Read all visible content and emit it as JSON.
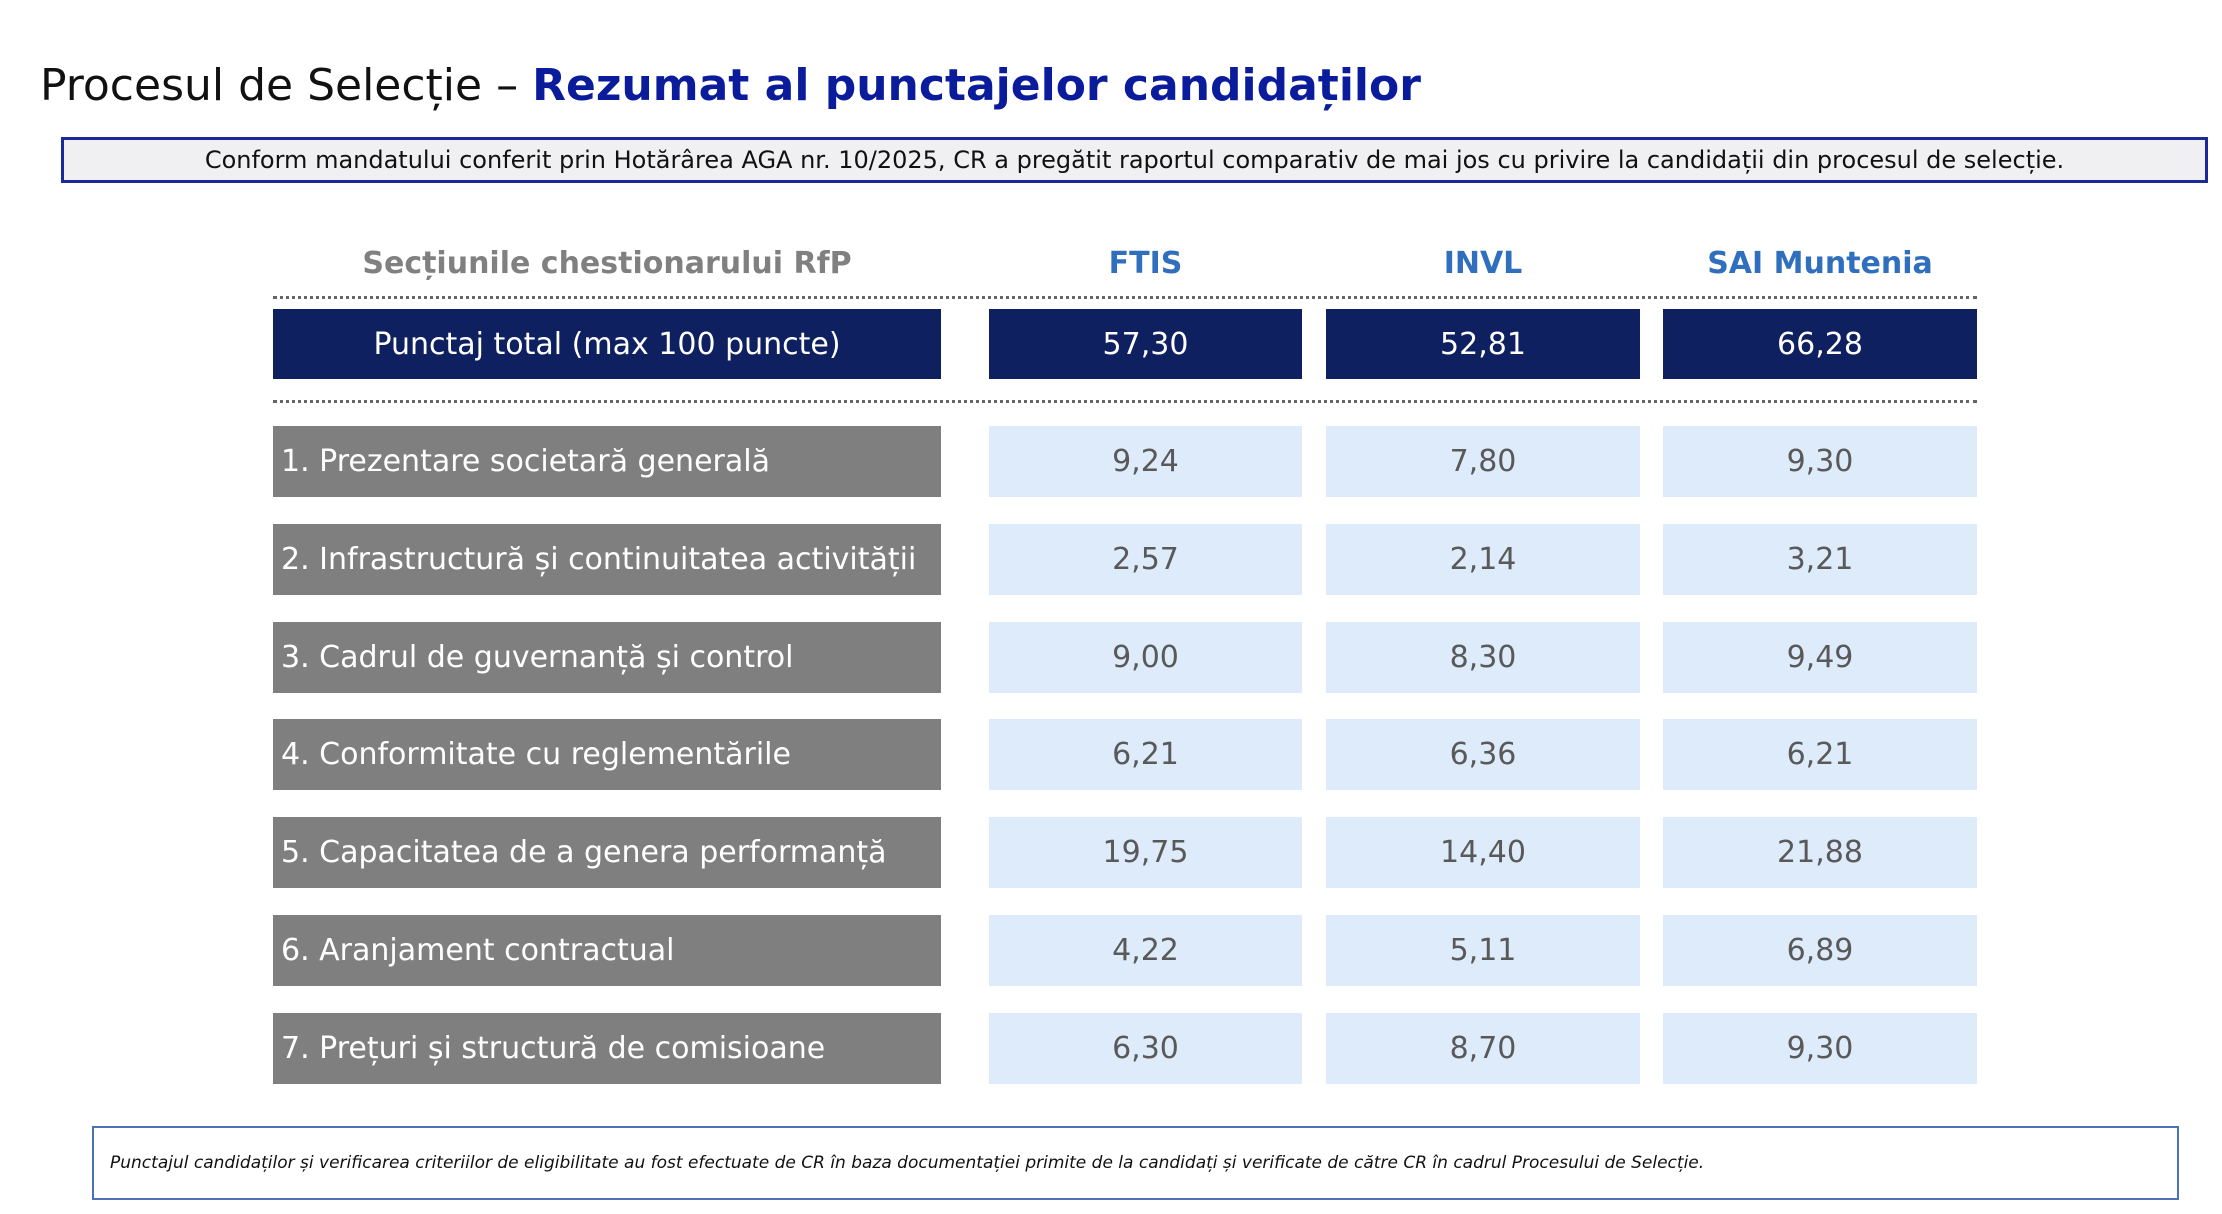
{
  "header": {
    "title_plain": "Procesul de Selecție –",
    "title_bold": "Rezumat al punctajelor candidaților",
    "banner": "Conform mandatului conferit prin Hotărârea AGA nr. 10/2025, CR a pregătit raportul comparativ de mai jos cu privire la candidații din procesul de selecție."
  },
  "table": {
    "columns": [
      "Secțiunile chestionarului RfP",
      "FTIS",
      "INVL",
      "SAI Muntenia"
    ],
    "total": [
      "Punctaj total (max 100 puncte)",
      "57,30",
      "52,81",
      "66,28"
    ],
    "rows": [
      [
        "1. Prezentare societară generală",
        "9,24",
        "7,80",
        "9,30"
      ],
      [
        "2. Infrastructură și continuitatea activității",
        "2,57",
        "2,14",
        "3,21"
      ],
      [
        "3. Cadrul de guvernanță și control",
        "9,00",
        "8,30",
        "9,49"
      ],
      [
        "4. Conformitate cu reglementările",
        "6,21",
        "6,36",
        "6,21"
      ],
      [
        "5. Capacitatea de a genera performanță",
        "19,75",
        "14,40",
        "21,88"
      ],
      [
        "6. Aranjament contractual",
        "4,22",
        "5,11",
        "6,89"
      ],
      [
        "7. Prețuri și structură de comisioane",
        "6,30",
        "8,70",
        "9,30"
      ]
    ]
  },
  "footer": {
    "text": "Punctajul candidaților și verificarea criteriilor de eligibilitate au fost efectuate de CR în baza documentației primite de la candidați și verificate de către CR în cadrul Procesului de Selecție."
  }
}
